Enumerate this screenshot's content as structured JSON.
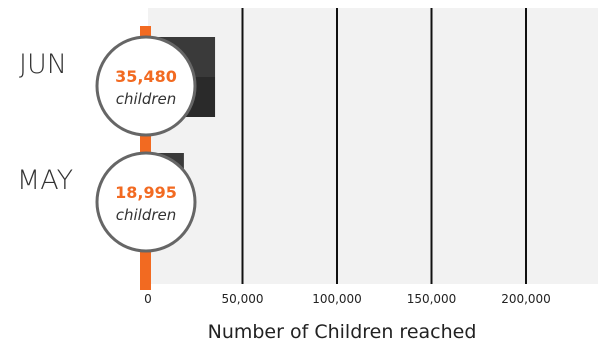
{
  "chart_data": {
    "type": "bar",
    "orientation": "horizontal",
    "categories": [
      "JUN",
      "MAY"
    ],
    "values": [
      35480,
      18995
    ],
    "value_labels": [
      "35,480",
      "18,995"
    ],
    "value_unit": "children",
    "xlabel": "Number of  Children reached",
    "x_ticks": [
      0,
      50000,
      100000,
      150000,
      200000
    ],
    "x_tick_labels": [
      "0",
      "50,000",
      "100,000",
      "150,000",
      "200,000"
    ],
    "xlim": [
      0,
      240000
    ],
    "grid": true,
    "legend": "none"
  },
  "colors": {
    "accent": "#f26a21",
    "bar_top": "#3a3a3a",
    "bar_bottom": "#2a2a2a",
    "plot_background": "#f2f2f2",
    "gridline": "#111111",
    "category_text": "#333333",
    "value_text": "#f26a21",
    "badge_ring": "#666666"
  },
  "icons": {
    "value_badge": "circle-badge"
  }
}
